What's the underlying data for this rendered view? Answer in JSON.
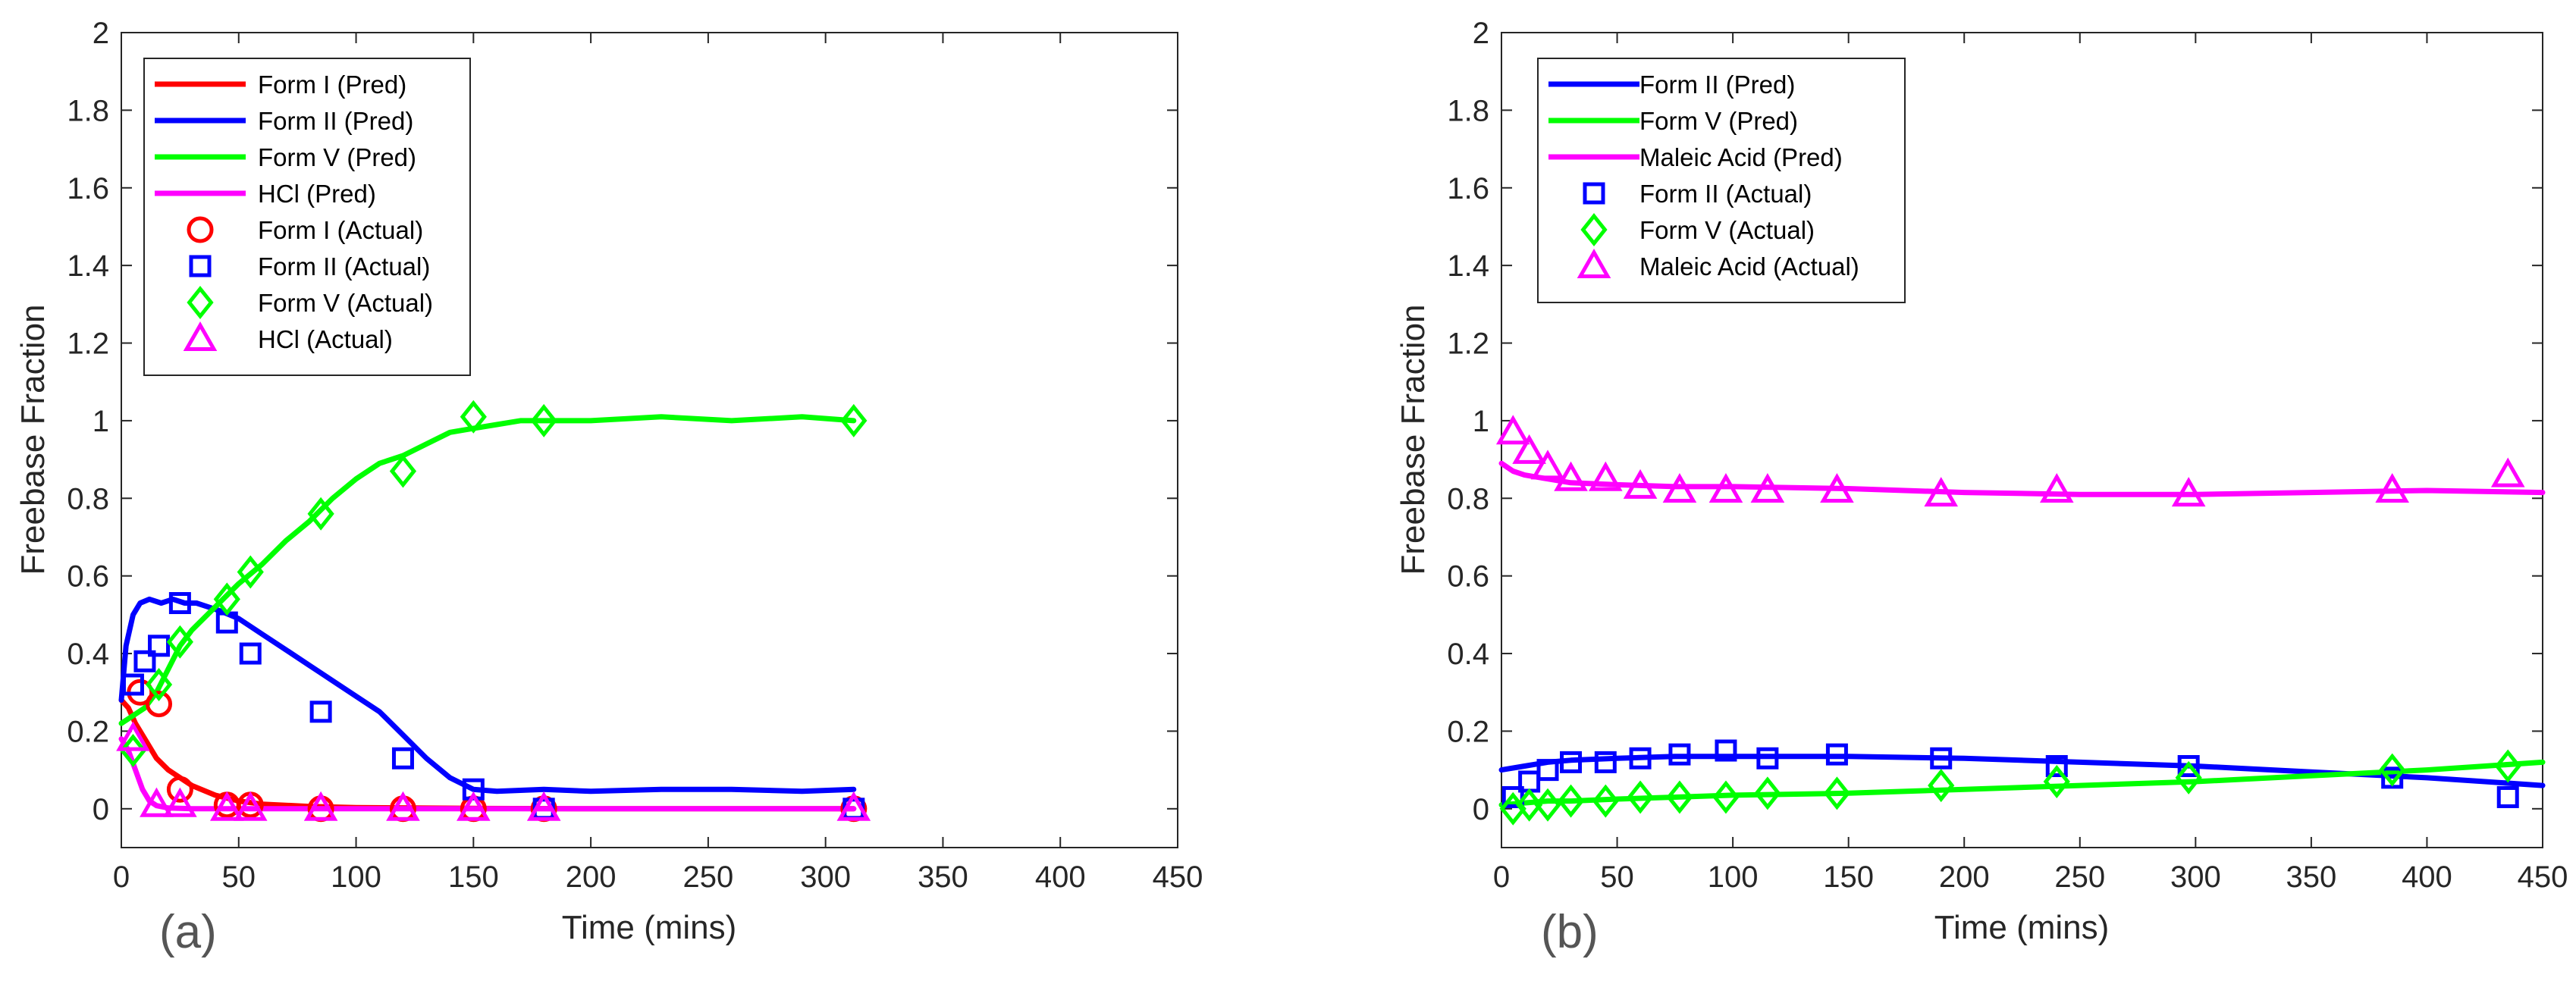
{
  "chart_data": [
    {
      "type": "line",
      "panel_label": "(a)",
      "xlabel": "Time (mins)",
      "ylabel": "Freebase Fraction",
      "xlim": [
        0,
        450
      ],
      "ylim": [
        -0.1,
        2
      ],
      "xticks": [
        "0",
        "50",
        "100",
        "150",
        "200",
        "250",
        "300",
        "350",
        "400",
        "450"
      ],
      "yticks": [
        "0",
        "0.2",
        "0.4",
        "0.6",
        "0.8",
        "1",
        "1.2",
        "1.4",
        "1.6",
        "1.8",
        "2"
      ],
      "legend": {
        "placement": "top-left",
        "entries": [
          "Form I (Pred)",
          "Form II (Pred)",
          "Form V (Pred)",
          "HCl (Pred)",
          "Form I (Actual)",
          "Form II (Actual)",
          "Form V (Actual)",
          "HCl (Actual)"
        ]
      },
      "series": [
        {
          "name": "Form I (Pred)",
          "kind": "line",
          "color": "#ff0000",
          "x": [
            0,
            3,
            6,
            10,
            15,
            20,
            30,
            40,
            50,
            60,
            80,
            100,
            150,
            200,
            250,
            312
          ],
          "y": [
            0.28,
            0.26,
            0.22,
            0.18,
            0.13,
            0.1,
            0.06,
            0.035,
            0.02,
            0.012,
            0.006,
            0.003,
            0.001,
            0,
            0,
            0
          ]
        },
        {
          "name": "Form II (Pred)",
          "kind": "line",
          "color": "#0000ff",
          "x": [
            0,
            2,
            5,
            8,
            12,
            17,
            22,
            27,
            32,
            37,
            42,
            50,
            60,
            70,
            80,
            90,
            100,
            110,
            120,
            130,
            140,
            150,
            160,
            180,
            200,
            230,
            260,
            290,
            312
          ],
          "y": [
            0.28,
            0.42,
            0.5,
            0.53,
            0.54,
            0.53,
            0.54,
            0.53,
            0.53,
            0.52,
            0.51,
            0.49,
            0.45,
            0.41,
            0.37,
            0.33,
            0.29,
            0.25,
            0.19,
            0.13,
            0.08,
            0.05,
            0.045,
            0.05,
            0.045,
            0.05,
            0.05,
            0.045,
            0.05
          ]
        },
        {
          "name": "Form V (Pred)",
          "kind": "line",
          "color": "#00ff00",
          "x": [
            0,
            5,
            10,
            15,
            20,
            25,
            30,
            40,
            50,
            60,
            70,
            80,
            90,
            100,
            110,
            120,
            130,
            140,
            150,
            160,
            170,
            180,
            200,
            230,
            260,
            290,
            312
          ],
          "y": [
            0.22,
            0.24,
            0.26,
            0.3,
            0.36,
            0.42,
            0.46,
            0.52,
            0.58,
            0.63,
            0.69,
            0.74,
            0.8,
            0.85,
            0.89,
            0.91,
            0.94,
            0.97,
            0.98,
            0.99,
            1.0,
            1.0,
            1.0,
            1.01,
            1.0,
            1.01,
            1.0
          ]
        },
        {
          "name": "HCl (Pred)",
          "kind": "line",
          "color": "#ff00ff",
          "x": [
            0,
            3,
            6,
            9,
            12,
            15,
            20,
            30,
            312
          ],
          "y": [
            0.18,
            0.15,
            0.1,
            0.05,
            0.02,
            0.008,
            0.002,
            0,
            0
          ]
        },
        {
          "name": "Form I (Actual)",
          "kind": "marker",
          "marker": "circle",
          "color": "#ff0000",
          "x": [
            8,
            16,
            25,
            45,
            55,
            85,
            120,
            150,
            180,
            312
          ],
          "y": [
            0.3,
            0.27,
            0.05,
            0.01,
            0.01,
            0.0,
            0.0,
            0.0,
            0.0,
            0.0
          ]
        },
        {
          "name": "Form II (Actual)",
          "kind": "marker",
          "marker": "square",
          "color": "#0000ff",
          "x": [
            5,
            10,
            16,
            25,
            45,
            55,
            85,
            120,
            150,
            180,
            312
          ],
          "y": [
            0.32,
            0.38,
            0.42,
            0.53,
            0.48,
            0.4,
            0.25,
            0.13,
            0.05,
            0.0,
            0.0
          ]
        },
        {
          "name": "Form V (Actual)",
          "kind": "marker",
          "marker": "diamond",
          "color": "#00ff00",
          "x": [
            5,
            16,
            25,
            45,
            55,
            85,
            120,
            150,
            180,
            312
          ],
          "y": [
            0.15,
            0.32,
            0.43,
            0.54,
            0.61,
            0.76,
            0.87,
            1.01,
            1.0,
            1.0
          ]
        },
        {
          "name": "HCl (Actual)",
          "kind": "marker",
          "marker": "triangle",
          "color": "#ff00ff",
          "x": [
            5,
            15,
            25,
            45,
            55,
            85,
            120,
            150,
            180,
            312
          ],
          "y": [
            0.18,
            0.01,
            0.01,
            0.0,
            0.0,
            0.0,
            0.0,
            0.0,
            0.0,
            0.0
          ]
        }
      ]
    },
    {
      "type": "line",
      "panel_label": "(b)",
      "xlabel": "Time (mins)",
      "ylabel": "Freebase Fraction",
      "xlim": [
        0,
        450
      ],
      "ylim": [
        -0.1,
        2
      ],
      "xticks": [
        "0",
        "50",
        "100",
        "150",
        "200",
        "250",
        "300",
        "350",
        "400",
        "450"
      ],
      "yticks": [
        "0",
        "0.2",
        "0.4",
        "0.6",
        "0.8",
        "1",
        "1.2",
        "1.4",
        "1.6",
        "1.8",
        "2"
      ],
      "legend": {
        "placement": "top-left",
        "entries": [
          "Form II (Pred)",
          "Form V (Pred)",
          "Maleic Acid (Pred)",
          "Form II (Actual)",
          "Form V (Actual)",
          "Maleic Acid (Actual)"
        ]
      },
      "series": [
        {
          "name": "Form II (Pred)",
          "kind": "line",
          "color": "#0000ff",
          "x": [
            0,
            10,
            20,
            30,
            50,
            75,
            100,
            150,
            200,
            250,
            300,
            350,
            400,
            450
          ],
          "y": [
            0.1,
            0.11,
            0.12,
            0.125,
            0.13,
            0.135,
            0.135,
            0.135,
            0.13,
            0.12,
            0.11,
            0.095,
            0.08,
            0.06
          ]
        },
        {
          "name": "Form V (Pred)",
          "kind": "line",
          "color": "#00ff00",
          "x": [
            0,
            10,
            20,
            30,
            50,
            75,
            100,
            150,
            200,
            250,
            300,
            350,
            400,
            450
          ],
          "y": [
            0.01,
            0.015,
            0.02,
            0.02,
            0.025,
            0.03,
            0.035,
            0.04,
            0.05,
            0.06,
            0.07,
            0.085,
            0.1,
            0.12
          ]
        },
        {
          "name": "Maleic Acid (Pred)",
          "kind": "line",
          "color": "#ff00ff",
          "x": [
            0,
            5,
            10,
            20,
            30,
            50,
            75,
            100,
            150,
            200,
            250,
            300,
            350,
            400,
            450
          ],
          "y": [
            0.89,
            0.87,
            0.86,
            0.85,
            0.84,
            0.835,
            0.83,
            0.83,
            0.825,
            0.815,
            0.81,
            0.81,
            0.815,
            0.82,
            0.815
          ]
        },
        {
          "name": "Form II (Actual)",
          "kind": "marker",
          "marker": "square",
          "color": "#0000ff",
          "x": [
            5,
            12,
            20,
            30,
            45,
            60,
            77,
            97,
            115,
            145,
            190,
            240,
            297,
            385,
            435
          ],
          "y": [
            0.03,
            0.07,
            0.1,
            0.12,
            0.12,
            0.13,
            0.14,
            0.15,
            0.13,
            0.14,
            0.13,
            0.11,
            0.11,
            0.08,
            0.03
          ]
        },
        {
          "name": "Form V (Actual)",
          "kind": "marker",
          "marker": "diamond",
          "color": "#00ff00",
          "x": [
            5,
            12,
            20,
            30,
            45,
            60,
            77,
            97,
            115,
            145,
            190,
            240,
            297,
            385,
            435
          ],
          "y": [
            0.0,
            0.01,
            0.01,
            0.02,
            0.02,
            0.03,
            0.03,
            0.03,
            0.04,
            0.04,
            0.06,
            0.07,
            0.08,
            0.1,
            0.11
          ]
        },
        {
          "name": "Maleic Acid (Actual)",
          "kind": "marker",
          "marker": "triangle",
          "color": "#ff00ff",
          "x": [
            5,
            12,
            20,
            30,
            45,
            60,
            77,
            97,
            115,
            145,
            190,
            240,
            297,
            385,
            435
          ],
          "y": [
            0.97,
            0.92,
            0.88,
            0.85,
            0.85,
            0.83,
            0.82,
            0.82,
            0.82,
            0.82,
            0.81,
            0.82,
            0.81,
            0.82,
            0.86
          ]
        }
      ]
    }
  ]
}
